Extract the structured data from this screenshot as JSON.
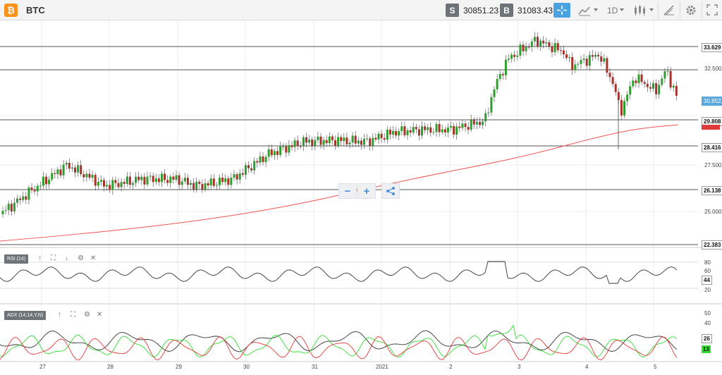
{
  "toolbar": {
    "symbol": "BTC",
    "logo_glyph": "₿",
    "sell_label": "S",
    "sell_price": "30851.23",
    "buy_label": "B",
    "buy_price": "31083.43",
    "timeframe": "1D",
    "accent": "#4aa3e0"
  },
  "price_axis": {
    "labels": [
      "32.500",
      "27.500",
      "25.000"
    ],
    "levels": [
      "33.629",
      "29.808",
      "28.416",
      "26.138",
      "22.383"
    ],
    "current": "30.852,1",
    "current_color": "#5aa8dc",
    "red_level_color": "#e03b3b"
  },
  "x_axis": {
    "labels": [
      "27",
      "28",
      "29",
      "30",
      "31",
      "2021",
      "2",
      "3",
      "4",
      "5"
    ]
  },
  "rsi": {
    "label": "RSI (14)",
    "axis": [
      "80",
      "60",
      "40",
      "20"
    ],
    "value": "44"
  },
  "adx": {
    "label": "ADX (14,14,Y,N)",
    "axis": [
      "50",
      "40",
      "30",
      "20"
    ],
    "value_main": "26",
    "value_green": "13"
  },
  "zoom": {
    "minus": "−",
    "plus": "+"
  },
  "colors": {
    "up": "#2e9e2e",
    "down": "#a8322a",
    "ma": "#ef5350",
    "grid": "#ececec"
  }
}
